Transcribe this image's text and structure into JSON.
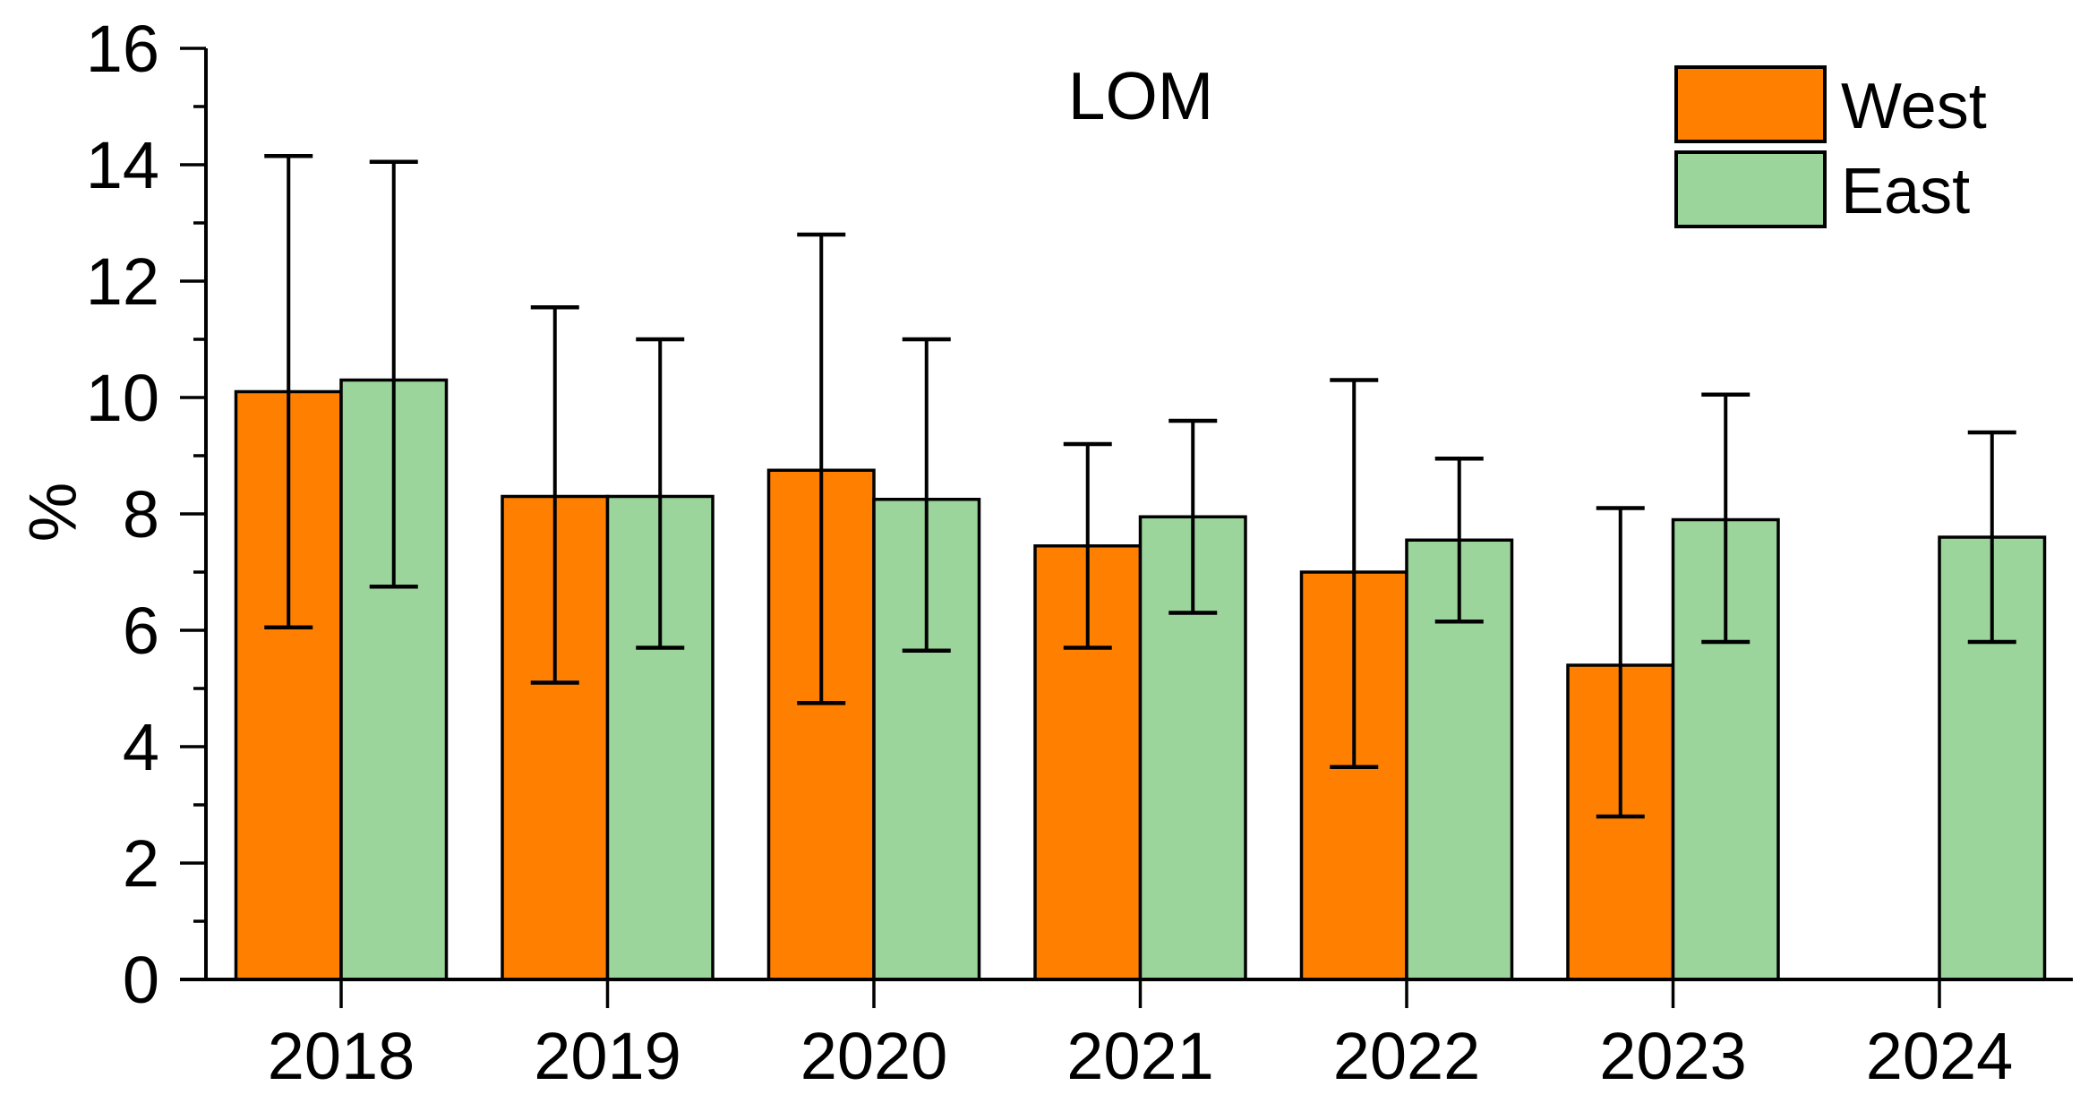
{
  "chart_data": {
    "type": "bar",
    "title": "LOM",
    "xlabel": "",
    "ylabel": "%",
    "ylim": [
      0,
      16
    ],
    "ytick_step": 2,
    "yminor_step": 1,
    "ytick_labels": [
      "0",
      "2",
      "4",
      "6",
      "8",
      "10",
      "12",
      "14",
      "16"
    ],
    "grid": false,
    "background": "#FFFFFF",
    "axis_color": "#000000",
    "categories": [
      "2018",
      "2019",
      "2020",
      "2021",
      "2022",
      "2023",
      "2024"
    ],
    "series": [
      {
        "name": "West",
        "color": "#FF8000",
        "values": [
          10.1,
          8.3,
          8.75,
          7.45,
          7.0,
          5.4,
          null
        ],
        "err_low": [
          6.05,
          5.1,
          4.75,
          5.7,
          3.65,
          2.8,
          null
        ],
        "err_high": [
          14.15,
          11.55,
          12.8,
          9.2,
          10.3,
          8.1,
          null
        ]
      },
      {
        "name": "East",
        "color": "#9BD59B",
        "values": [
          10.3,
          8.3,
          8.25,
          7.95,
          7.55,
          7.9,
          7.6
        ],
        "err_low": [
          6.75,
          5.7,
          5.65,
          6.3,
          6.15,
          5.8,
          5.8
        ],
        "err_high": [
          14.05,
          11.0,
          11.0,
          9.6,
          8.95,
          10.05,
          9.4
        ]
      }
    ],
    "legend": {
      "position": "top-right",
      "entries": [
        "West",
        "East"
      ]
    }
  }
}
